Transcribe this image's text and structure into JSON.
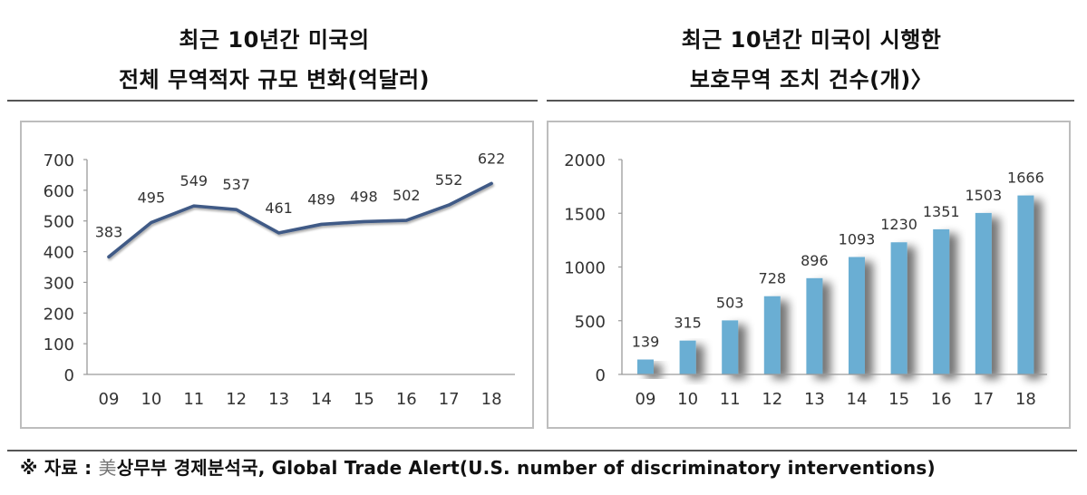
{
  "left": {
    "title_line1": "최근 10년간 미국의",
    "title_line2": "전체 무역적자 규모 변화(억달러)"
  },
  "right": {
    "title_line1": "최근 10년간 미국이 시행한",
    "title_line2": "보호무역 조치 건수(개)〉"
  },
  "source": {
    "prefix": "※ 자료 : ",
    "mei": "美",
    "text": "상무부 경제분석국, Global Trade Alert(U.S. number of discriminatory interventions)"
  },
  "colors": {
    "line": "#3f5a86",
    "bar": "#6aaed3",
    "axis": "#9a9a9a",
    "frame": "#bdbdbd"
  },
  "chart_data": [
    {
      "type": "line",
      "title": "최근 10년간 미국의 전체 무역적자 규모 변화(억달러)",
      "xlabel": "",
      "ylabel": "",
      "categories": [
        "09",
        "10",
        "11",
        "12",
        "13",
        "14",
        "15",
        "16",
        "17",
        "18"
      ],
      "values": [
        383,
        495,
        549,
        537,
        461,
        489,
        498,
        502,
        552,
        622
      ],
      "ylim": [
        0,
        700
      ],
      "yticks": [
        0,
        100,
        200,
        300,
        400,
        500,
        600,
        700
      ],
      "grid": false,
      "legend": "none",
      "data_labels": true
    },
    {
      "type": "bar",
      "title": "최근 10년간 미국이 시행한 보호무역 조치 건수(개)",
      "xlabel": "",
      "ylabel": "",
      "categories": [
        "09",
        "10",
        "11",
        "12",
        "13",
        "14",
        "15",
        "16",
        "17",
        "18"
      ],
      "values": [
        139,
        315,
        503,
        728,
        896,
        1093,
        1230,
        1351,
        1503,
        1666
      ],
      "ylim": [
        0,
        2000
      ],
      "yticks": [
        0,
        500,
        1000,
        1500,
        2000
      ],
      "grid": false,
      "legend": "none",
      "data_labels": true
    }
  ]
}
